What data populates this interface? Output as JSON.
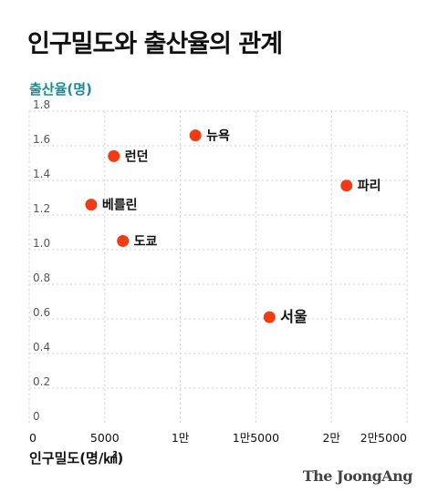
{
  "chart_data": {
    "type": "scatter",
    "title": "인구밀도와 출산율의 관계",
    "xlabel": "인구밀도(명/㎢)",
    "ylabel": "출산율(명)",
    "xlim": [
      0,
      25000
    ],
    "ylim": [
      0,
      1.8
    ],
    "x_ticks": [
      {
        "value": 0,
        "label": "0"
      },
      {
        "value": 5000,
        "label": "5000"
      },
      {
        "value": 10000,
        "label": "1만"
      },
      {
        "value": 15000,
        "label": "1만5000"
      },
      {
        "value": 20000,
        "label": "2만"
      },
      {
        "value": 25000,
        "label": "2만5000"
      }
    ],
    "y_ticks": [
      {
        "value": 1.8,
        "label": "1.8"
      },
      {
        "value": 1.6,
        "label": "1.6"
      },
      {
        "value": 1.4,
        "label": "1.4"
      },
      {
        "value": 1.2,
        "label": "1.2"
      },
      {
        "value": 1.0,
        "label": "1.0"
      },
      {
        "value": 0.8,
        "label": "0.8"
      },
      {
        "value": 0.6,
        "label": "0.6"
      },
      {
        "value": 0.4,
        "label": "0.4"
      },
      {
        "value": 0.2,
        "label": "0.2"
      },
      {
        "value": 0,
        "label": "0"
      }
    ],
    "grid": true,
    "point_color": "#f03c14",
    "points": [
      {
        "label": "뉴욕",
        "x": 11000,
        "y": 1.66
      },
      {
        "label": "런던",
        "x": 5600,
        "y": 1.54
      },
      {
        "label": "파리",
        "x": 21000,
        "y": 1.37
      },
      {
        "label": "베를린",
        "x": 4100,
        "y": 1.26
      },
      {
        "label": "도쿄",
        "x": 6200,
        "y": 1.05
      },
      {
        "label": "서울",
        "x": 15900,
        "y": 0.61,
        "emphasis": true
      }
    ]
  },
  "credit": "The JoongAng"
}
